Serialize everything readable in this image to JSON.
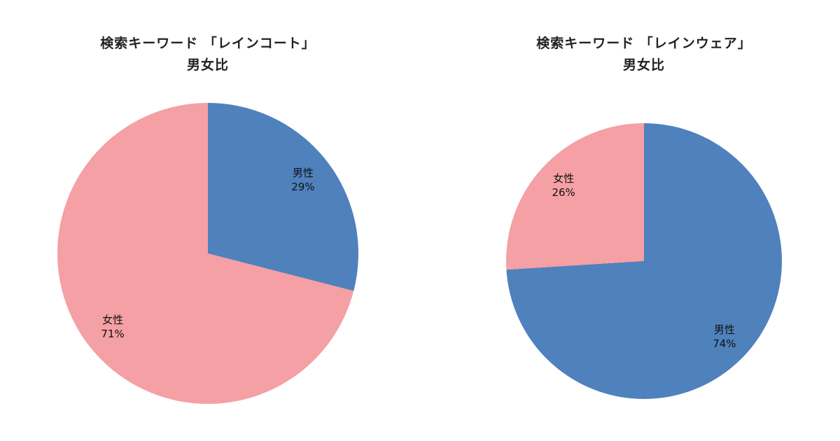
{
  "page": {
    "background": "#ffffff",
    "title_color": "#222222",
    "label_color": "#111111"
  },
  "chart_data": [
    {
      "type": "pie",
      "title": "検索キーワード 「レインコート」 男女比",
      "title_line1": "検索キーワード 「レインコート」",
      "title_line2": "男女比",
      "labels": [
        "男性",
        "女性"
      ],
      "values": [
        29,
        71
      ],
      "pct_labels": [
        "29%",
        "71%"
      ],
      "colors": [
        "#4f81bd",
        "#f4a0a4"
      ],
      "legend_position": "none",
      "data_labels": "inside",
      "start_angle_deg": 0,
      "direction": "clockwise"
    },
    {
      "type": "pie",
      "title": "検索キーワード 「レインウェア」 男女比",
      "title_line1": "検索キーワード 「レインウェア」",
      "title_line2": "男女比",
      "labels": [
        "男性",
        "女性"
      ],
      "values": [
        74,
        26
      ],
      "pct_labels": [
        "74%",
        "26%"
      ],
      "colors": [
        "#4f81bd",
        "#f4a0a4"
      ],
      "legend_position": "none",
      "data_labels": "inside",
      "start_angle_deg": 0,
      "direction": "clockwise"
    }
  ]
}
